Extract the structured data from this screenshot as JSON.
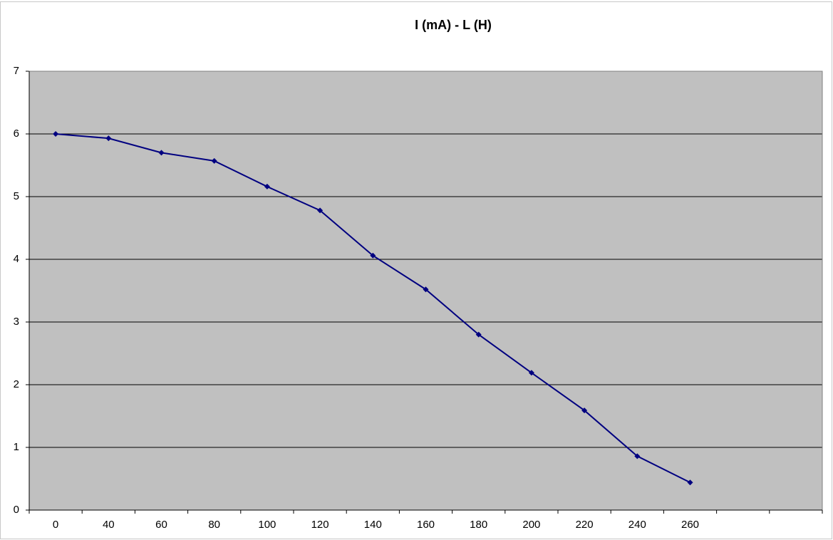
{
  "chart_data": {
    "type": "line",
    "title": "I (mA) - L (H)",
    "categories": [
      0,
      40,
      60,
      80,
      100,
      120,
      140,
      160,
      180,
      200,
      220,
      240,
      260,
      null,
      null
    ],
    "series": [
      {
        "name": "I (mA)",
        "color": "#000080",
        "values": [
          6.0,
          5.93,
          5.7,
          5.57,
          5.16,
          4.78,
          4.06,
          3.52,
          2.8,
          2.19,
          1.59,
          0.86,
          0.44,
          null,
          null
        ]
      }
    ],
    "ylim": [
      0,
      7
    ],
    "yticks": [
      0,
      1,
      2,
      3,
      4,
      5,
      6,
      7
    ],
    "grid": true,
    "plot_color": "#c0c0c0"
  }
}
